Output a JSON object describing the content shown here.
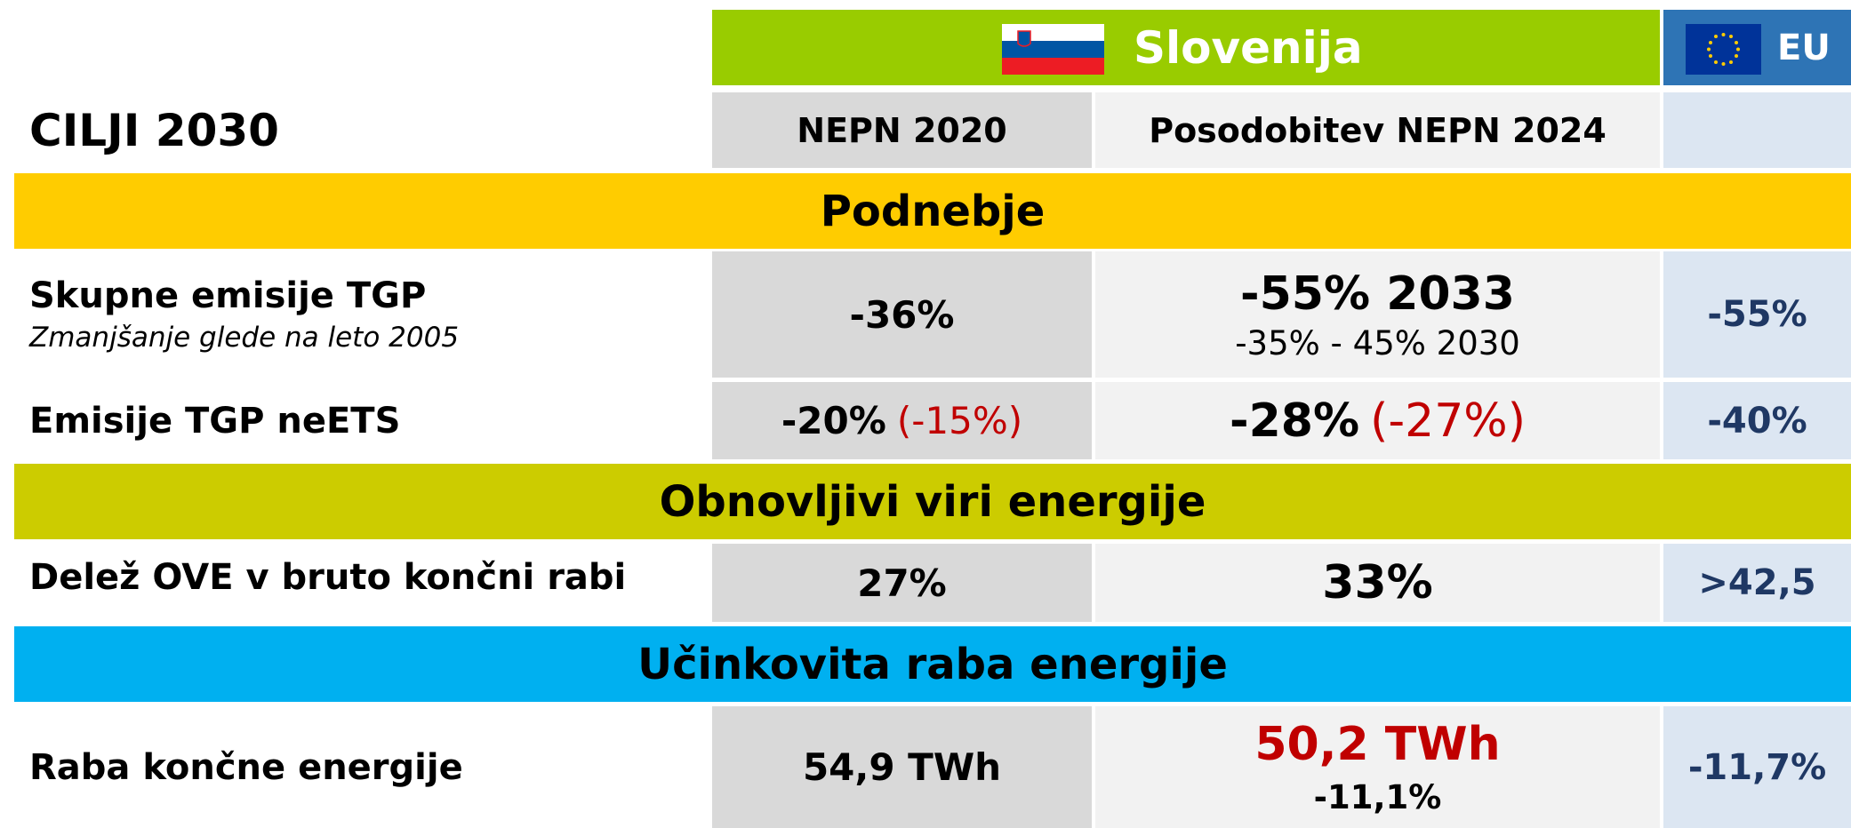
{
  "header": {
    "title": "CILJI 2030",
    "country": "Slovenija",
    "eu": "EU",
    "col1": "NEPN 2020",
    "col2": "Posodobitev NEPN 2024"
  },
  "sections": [
    {
      "title": "Podnebje",
      "rows": [
        {
          "label": "Skupne emisije TGP",
          "sublabel": "Zmanjšanje glede na leto 2005",
          "nepn2020": "-36%",
          "nepn2024": "-55% 2033",
          "nepn2024_sub": "-35% - 45% 2030",
          "eu": "-55%"
        },
        {
          "label": "Emisije TGP neETS",
          "nepn2020": "-20%",
          "nepn2020_note": "(-15%)",
          "nepn2024": "-28%",
          "nepn2024_note": "(-27%)",
          "eu": "-40%"
        }
      ]
    },
    {
      "title": "Obnovljivi viri energije",
      "rows": [
        {
          "label": "Delež OVE v bruto končni rabi",
          "nepn2020": "27%",
          "nepn2024": "33%",
          "eu": ">42,5"
        }
      ]
    },
    {
      "title": "Učinkovita raba energije",
      "rows": [
        {
          "label": "Raba končne energije",
          "nepn2020": "54,9 TWh",
          "nepn2024": "50,2 TWh",
          "nepn2024_sub": "-11,1%",
          "eu": "-11,7%"
        }
      ]
    }
  ]
}
